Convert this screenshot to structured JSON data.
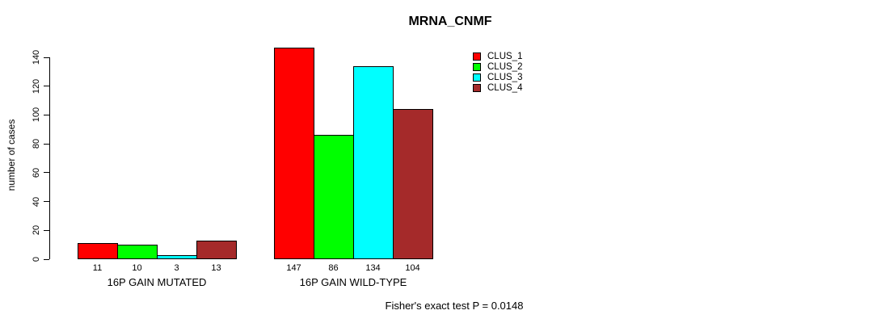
{
  "chart_data": {
    "type": "bar",
    "title": "MRNA_CNMF",
    "ylabel": "number of cases",
    "xlabel": "",
    "ylim": [
      0,
      140
    ],
    "yticks": [
      0,
      20,
      40,
      60,
      80,
      100,
      120,
      140
    ],
    "categories": [
      "16P GAIN MUTATED",
      "16P GAIN WILD-TYPE"
    ],
    "series": [
      {
        "name": "CLUS_1",
        "color": "#ff0000",
        "values": [
          11,
          147
        ]
      },
      {
        "name": "CLUS_2",
        "color": "#00ff00",
        "values": [
          10,
          86
        ]
      },
      {
        "name": "CLUS_3",
        "color": "#00ffff",
        "values": [
          3,
          134
        ]
      },
      {
        "name": "CLUS_4",
        "color": "#a52a2a",
        "values": [
          13,
          104
        ]
      }
    ],
    "show_bar_value_labels": true,
    "grid": false,
    "legend_position": "top-right",
    "annotation": "Fisher's exact test P = 0.0148"
  },
  "colors": {
    "background": "#ffffff",
    "text": "#000000",
    "axis": "#000000",
    "bar_border": "#000000"
  }
}
